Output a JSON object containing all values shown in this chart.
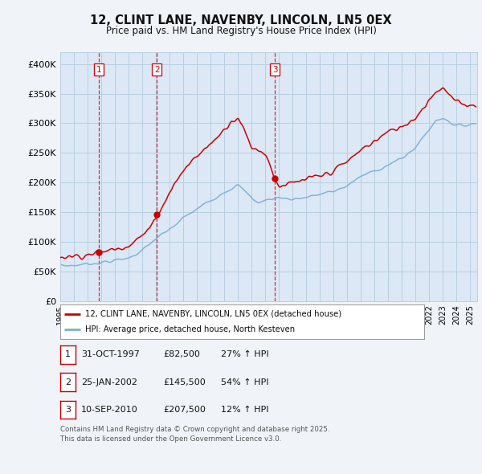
{
  "title": "12, CLINT LANE, NAVENBY, LINCOLN, LN5 0EX",
  "subtitle": "Price paid vs. HM Land Registry's House Price Index (HPI)",
  "ylim": [
    0,
    420000
  ],
  "yticks": [
    0,
    50000,
    100000,
    150000,
    200000,
    250000,
    300000,
    350000,
    400000
  ],
  "ytick_labels": [
    "£0",
    "£50K",
    "£100K",
    "£150K",
    "£200K",
    "£250K",
    "£300K",
    "£350K",
    "£400K"
  ],
  "background_color": "#f0f4f8",
  "plot_bg_color": "#dce8f5",
  "grid_color": "#b8cfe0",
  "red_color": "#cc0000",
  "blue_color": "#7aaed6",
  "sale_dates": [
    1997.83,
    2002.07,
    2010.69
  ],
  "sale_prices": [
    82500,
    145500,
    207500
  ],
  "sale_labels": [
    "1",
    "2",
    "3"
  ],
  "legend_line1": "12, CLINT LANE, NAVENBY, LINCOLN, LN5 0EX (detached house)",
  "legend_line2": "HPI: Average price, detached house, North Kesteven",
  "table_rows": [
    [
      "1",
      "31-OCT-1997",
      "£82,500",
      "27% ↑ HPI"
    ],
    [
      "2",
      "25-JAN-2002",
      "£145,500",
      "54% ↑ HPI"
    ],
    [
      "3",
      "10-SEP-2010",
      "£207,500",
      "12% ↑ HPI"
    ]
  ],
  "footer": "Contains HM Land Registry data © Crown copyright and database right 2025.\nThis data is licensed under the Open Government Licence v3.0."
}
